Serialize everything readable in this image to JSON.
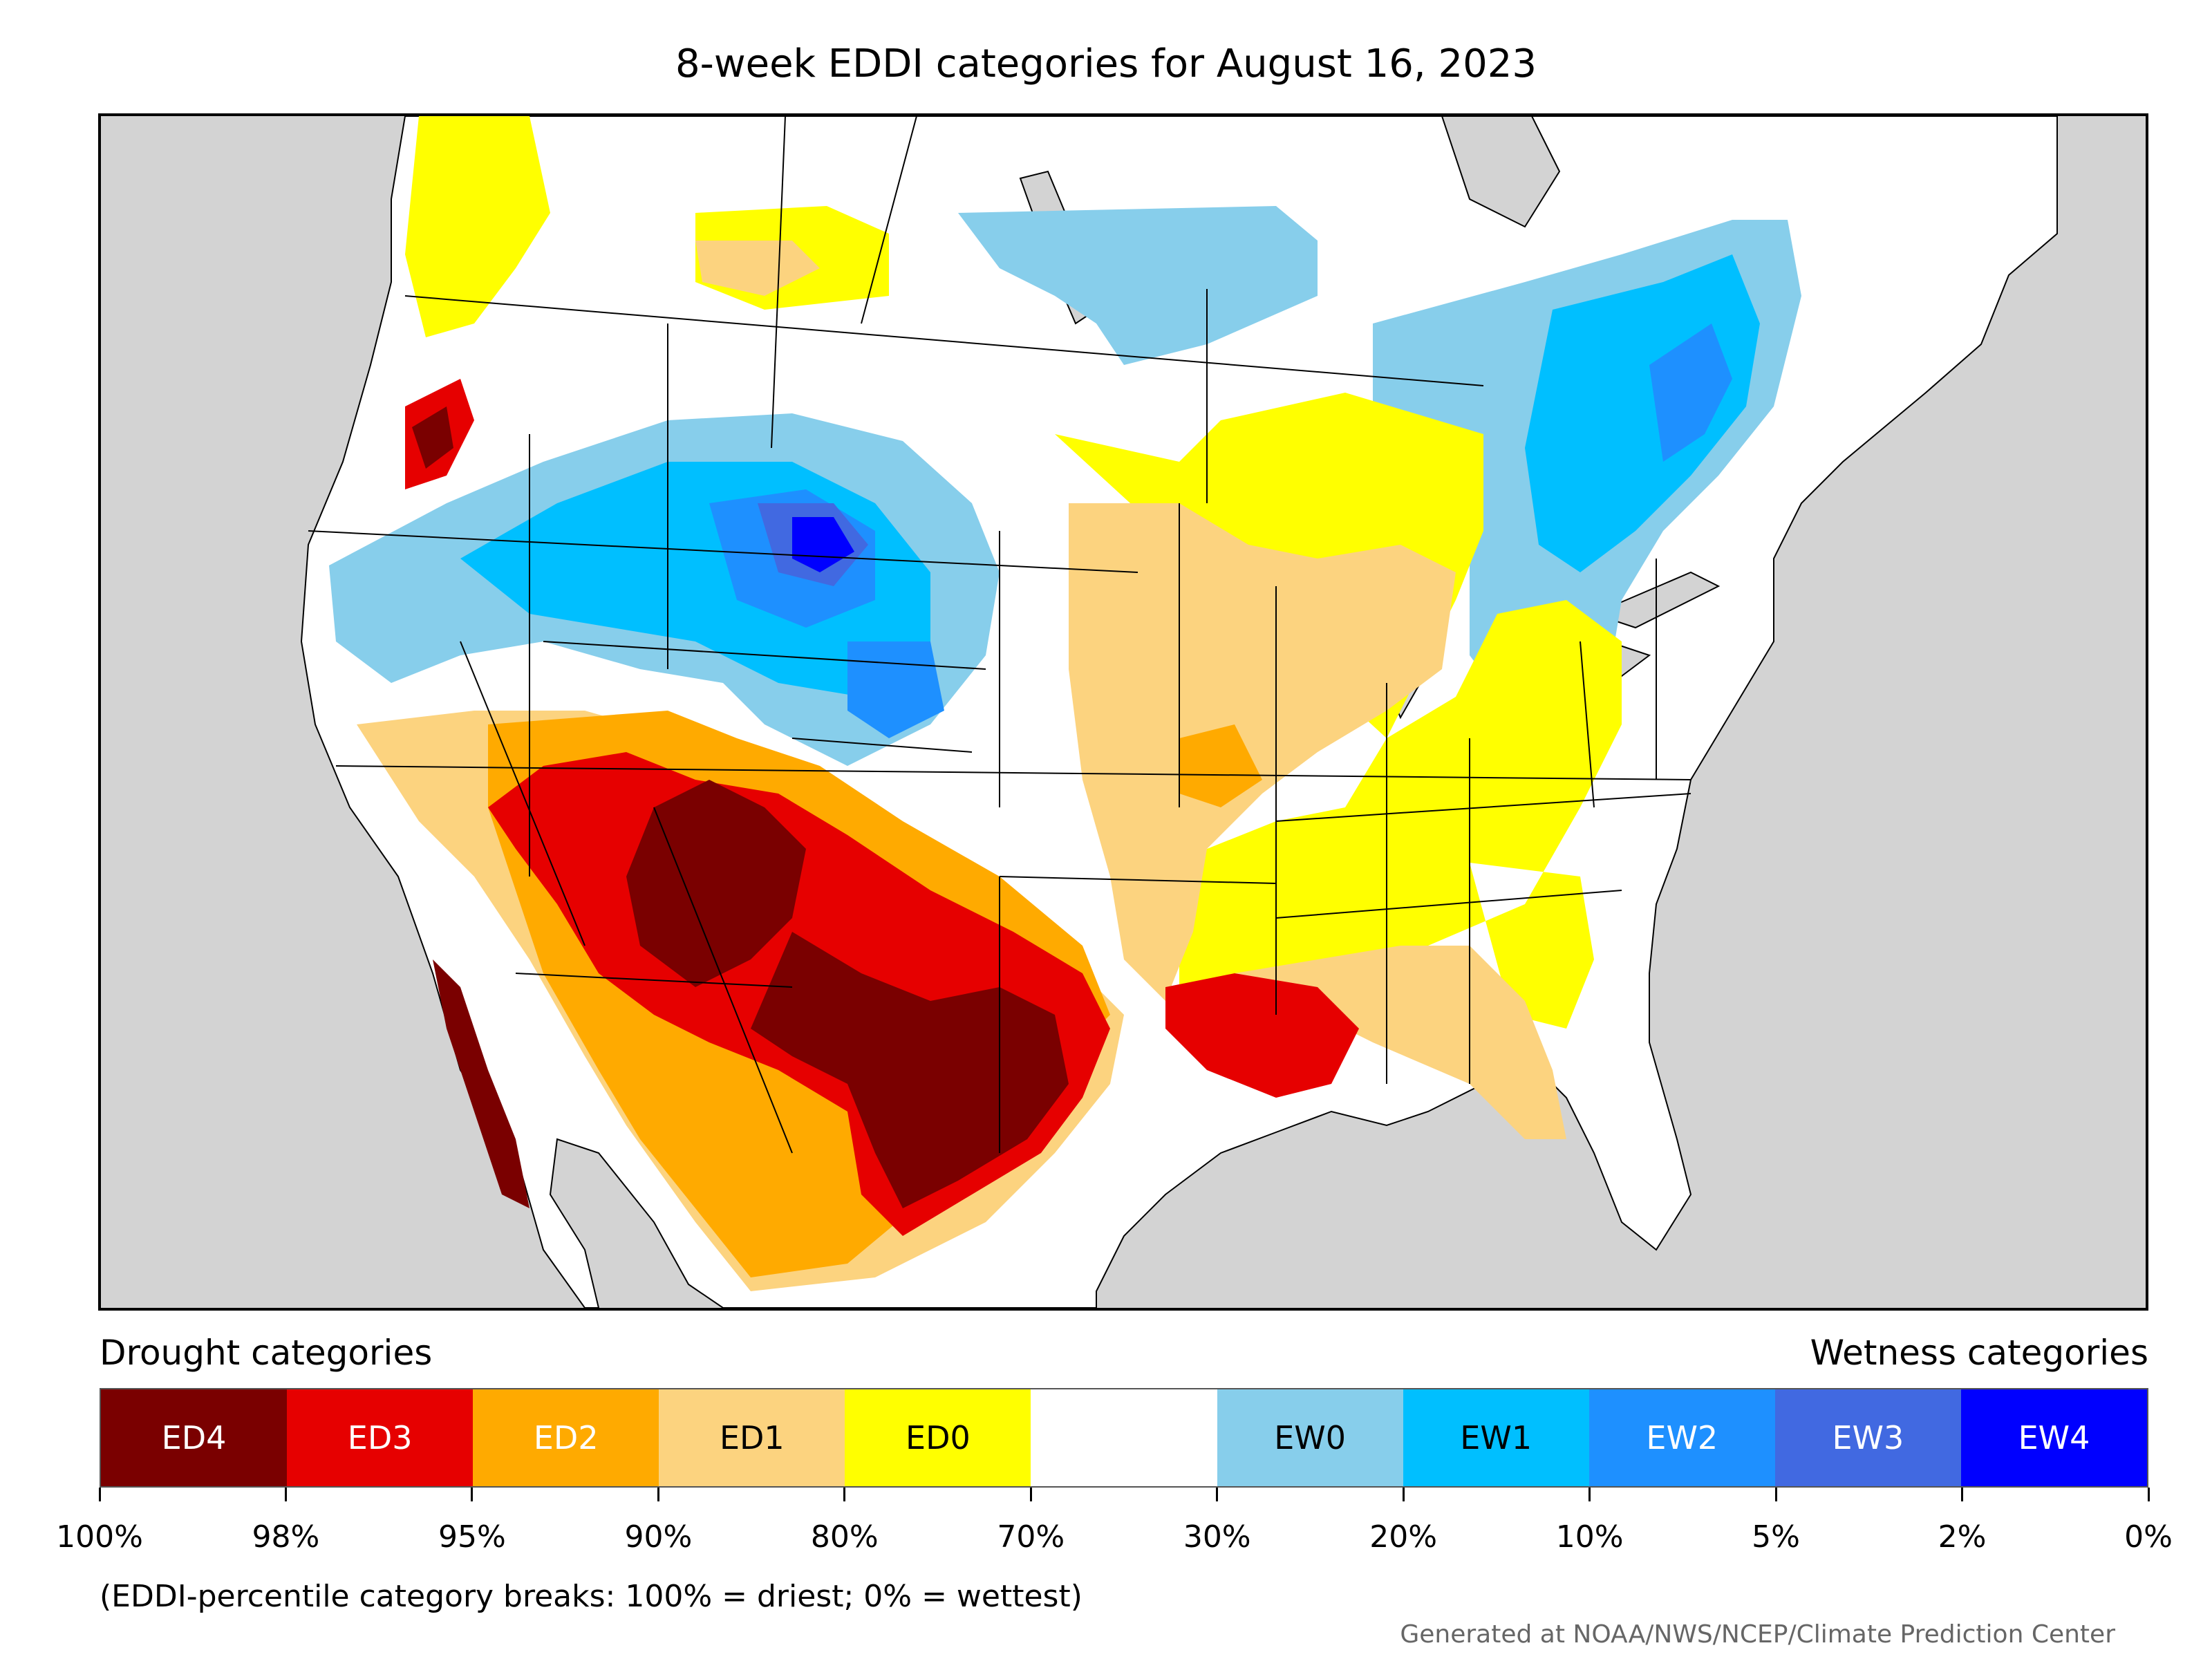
{
  "title": "8-week EDDI categories for August 16, 2023",
  "legend": {
    "left_heading": "Drought categories",
    "right_heading": "Wetness categories",
    "categories": [
      {
        "label": "ED4",
        "color": "#7a0000",
        "text_color": "#ffffff"
      },
      {
        "label": "ED3",
        "color": "#e60000",
        "text_color": "#ffffff"
      },
      {
        "label": "ED2",
        "color": "#ffaa00",
        "text_color": "#ffffff"
      },
      {
        "label": "ED1",
        "color": "#fcd37f",
        "text_color": "#000000"
      },
      {
        "label": "ED0",
        "color": "#ffff00",
        "text_color": "#000000"
      },
      {
        "label": "",
        "color": "#ffffff",
        "text_color": "#000000"
      },
      {
        "label": "EW0",
        "color": "#87ceeb",
        "text_color": "#000000"
      },
      {
        "label": "EW1",
        "color": "#00bfff",
        "text_color": "#000000"
      },
      {
        "label": "EW2",
        "color": "#1e90ff",
        "text_color": "#ffffff"
      },
      {
        "label": "EW3",
        "color": "#4169e1",
        "text_color": "#ffffff"
      },
      {
        "label": "EW4",
        "color": "#0000ff",
        "text_color": "#ffffff"
      }
    ],
    "breaks": [
      "100%",
      "98%",
      "95%",
      "90%",
      "80%",
      "70%",
      "30%",
      "20%",
      "10%",
      "5%",
      "2%",
      "0%"
    ]
  },
  "note": "(EDDI-percentile category breaks: 100% = driest; 0% = wettest)",
  "credit": "Generated at NOAA/NWS/NCEP/Climate Prediction Center",
  "colors": {
    "ocean": "#d3d3d3",
    "land_neutral": "#ffffff",
    "borders": "#000000"
  }
}
